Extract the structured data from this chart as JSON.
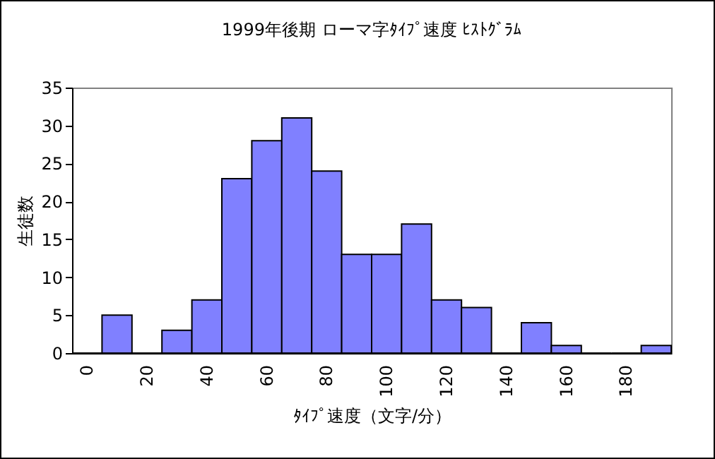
{
  "chart_data": {
    "type": "bar",
    "title": "1999年後期 ローマ字ﾀｲﾌﾟ速度 ﾋｽﾄｸﾞﾗﾑ",
    "xlabel": "ﾀｲﾌﾟ速度（文字/分）",
    "ylabel": "生徒数",
    "categories": [
      "0",
      null,
      "20",
      null,
      "40",
      null,
      "60",
      null,
      "80",
      null,
      "100",
      null,
      "120",
      null,
      "140",
      null,
      "160",
      null,
      "180",
      null
    ],
    "values": [
      0,
      5,
      0,
      3,
      7,
      23,
      28,
      31,
      24,
      13,
      13,
      17,
      7,
      6,
      0,
      4,
      1,
      0,
      0,
      1
    ],
    "color": "#8080ff",
    "ylim": [
      0,
      35
    ],
    "yticks": [
      0,
      5,
      10,
      15,
      20,
      25,
      30,
      35
    ]
  }
}
